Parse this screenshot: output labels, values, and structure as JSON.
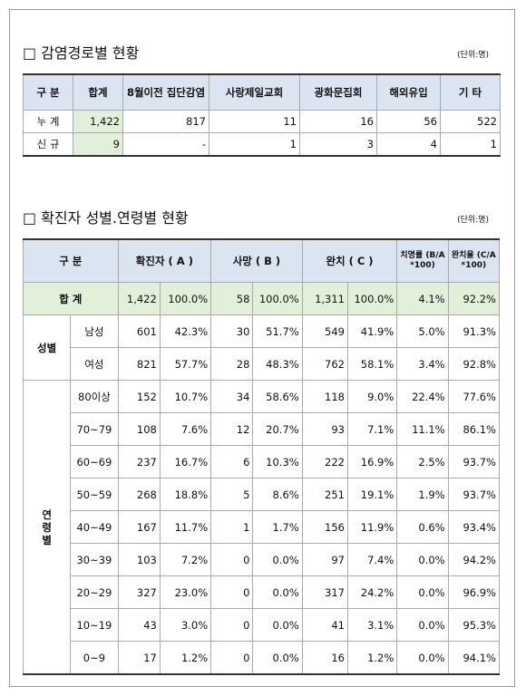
{
  "section1": {
    "title": "□ 감염경로별 현황",
    "unit": "(단위:명)",
    "table": {
      "header": [
        "구 분",
        "합계",
        "8월이전 집단감염",
        "사랑제일교회",
        "광화문집회",
        "해외유입",
        "기 타"
      ],
      "rows": [
        [
          "누 계",
          "1,422",
          "817",
          "11",
          "16",
          "56",
          "522"
        ],
        [
          "신 규",
          "9",
          "-",
          "1",
          "3",
          "4",
          "1"
        ]
      ]
    }
  },
  "section2": {
    "title": "□ 확진자 성별.연령별 현황",
    "unit": "(단위:명)",
    "table": {
      "header": [
        "구 분",
        "확진자 ( A )",
        "사망 ( B )",
        "완치 ( C )",
        "치명률 (B/A*100)",
        "완치율 (C/A*100)"
      ],
      "total": [
        "합 계",
        "1,422",
        "100.0%",
        "58",
        "100.0%",
        "1,311",
        "100.0%",
        "4.1%",
        "92.2%"
      ],
      "groups": [
        {
          "label": "성별",
          "rows": [
            [
              "남성",
              "601",
              "42.3%",
              "30",
              "51.7%",
              "549",
              "41.9%",
              "5.0%",
              "91.3%"
            ],
            [
              "여성",
              "821",
              "57.7%",
              "28",
              "48.3%",
              "762",
              "58.1%",
              "3.4%",
              "92.8%"
            ]
          ]
        },
        {
          "label": "연령별",
          "rows": [
            [
              "80이상",
              "152",
              "10.7%",
              "34",
              "58.6%",
              "118",
              "9.0%",
              "22.4%",
              "77.6%"
            ],
            [
              "70~79",
              "108",
              "7.6%",
              "12",
              "20.7%",
              "93",
              "7.1%",
              "11.1%",
              "86.1%"
            ],
            [
              "60~69",
              "237",
              "16.7%",
              "6",
              "10.3%",
              "222",
              "16.9%",
              "2.5%",
              "93.7%"
            ],
            [
              "50~59",
              "268",
              "18.8%",
              "5",
              "8.6%",
              "251",
              "19.1%",
              "1.9%",
              "93.7%"
            ],
            [
              "40~49",
              "167",
              "11.7%",
              "1",
              "1.7%",
              "156",
              "11.9%",
              "0.6%",
              "93.4%"
            ],
            [
              "30~39",
              "103",
              "7.2%",
              "0",
              "0.0%",
              "97",
              "7.4%",
              "0.0%",
              "94.2%"
            ],
            [
              "20~29",
              "327",
              "23.0%",
              "0",
              "0.0%",
              "317",
              "24.2%",
              "0.0%",
              "96.9%"
            ],
            [
              "10~19",
              "43",
              "3.0%",
              "0",
              "0.0%",
              "41",
              "3.1%",
              "0.0%",
              "95.3%"
            ],
            [
              "0~9",
              "17",
              "1.2%",
              "0",
              "0.0%",
              "16",
              "1.2%",
              "0.0%",
              "94.1%"
            ]
          ]
        }
      ]
    }
  }
}
